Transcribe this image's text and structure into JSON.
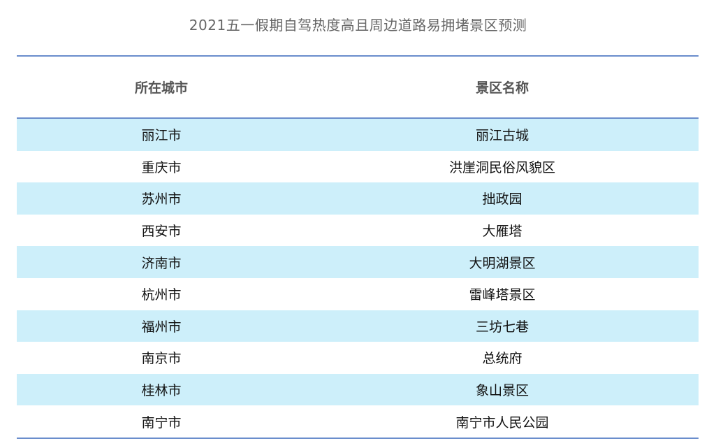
{
  "title": "2021五一假期自驾热度高且周边道路易拥堵景区预测",
  "headers": [
    "所在城市",
    "景区名称"
  ],
  "rows": [
    [
      "丽江市",
      "丽江古城"
    ],
    [
      "重庆市",
      "洪崖洞民俗风貌区"
    ],
    [
      "苏州市",
      "拙政园"
    ],
    [
      "西安市",
      "大雁塔"
    ],
    [
      "济南市",
      "大明湖景区"
    ],
    [
      "杭州市",
      "雷峰塔景区"
    ],
    [
      "福州市",
      "三坊七巷"
    ],
    [
      "南京市",
      "总统府"
    ],
    [
      "桂林市",
      "象山景区"
    ],
    [
      "南宁市",
      "南宁市人民公园"
    ]
  ],
  "colors": {
    "stripe": "#cdeffa",
    "rule": "#6a8dcc"
  }
}
